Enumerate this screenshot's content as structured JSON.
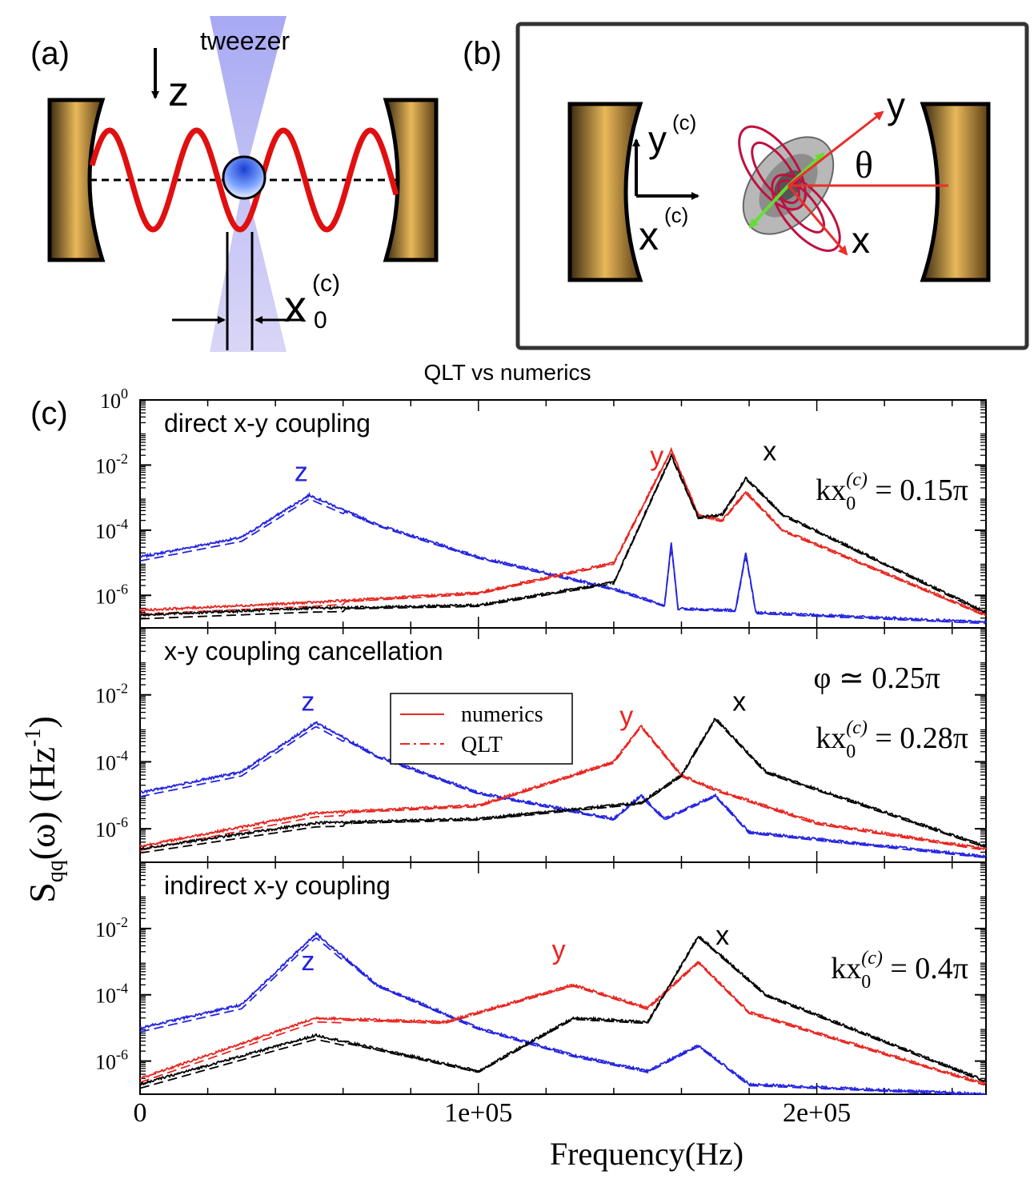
{
  "panel_a": {
    "label": "(a)",
    "tweezer_label": "tweezer",
    "z_label": "z",
    "x0_label": "x",
    "x0_sup": "(c)",
    "x0_sub": "0"
  },
  "panel_b": {
    "label": "(b)",
    "yc_label": "y",
    "yc_sup": "(c)",
    "xc_label": "x",
    "xc_sup": "(c)",
    "y_label": "y",
    "x_label": "x",
    "theta_label": "θ"
  },
  "panel_c": {
    "label": "(c)",
    "title": "QLT vs numerics",
    "ylabel": "S",
    "ylabel_sub": "qq",
    "ylabel_rest": "(ω) (Hz",
    "ylabel_sup": "-1",
    "ylabel_close": ")",
    "xlabel": "Frequency(Hz)",
    "x_ticks": [
      "0",
      "1e+05",
      "2e+05"
    ],
    "y_tick_base": "10",
    "y_tick_exps": [
      "0",
      "-2",
      "-4",
      "-6"
    ],
    "legend": {
      "solid": "numerics",
      "dashed": "QLT"
    }
  },
  "colors": {
    "x": "#000000",
    "y": "#e8251f",
    "z": "#2323e0"
  },
  "chart_data": [
    {
      "type": "line",
      "title": "direct x-y coupling",
      "annotations": [
        "kx_0^(c) = 0.15π"
      ],
      "peak_labels": {
        "z": "z",
        "y": "y",
        "x": "x"
      },
      "xlim": [
        0,
        250000
      ],
      "ylim": [
        1e-07,
        1
      ],
      "z_freq": 50000,
      "y_freq": 157000,
      "x_freq": 179000,
      "series": [
        {
          "name": "z numerics",
          "style": "solid",
          "color": "z",
          "points": [
            [
              0,
              1.5e-05
            ],
            [
              30000,
              6e-05
            ],
            [
              50000,
              0.0012
            ],
            [
              70000,
              0.00015
            ],
            [
              100000,
              1.5e-05
            ],
            [
              140000,
              1.6e-06
            ],
            [
              155000,
              5e-07
            ],
            [
              157000,
              4e-05
            ],
            [
              159000,
              4e-07
            ],
            [
              176000,
              3.5e-07
            ],
            [
              179000,
              2e-05
            ],
            [
              182000,
              3e-07
            ],
            [
              250000,
              1.5e-07
            ]
          ]
        },
        {
          "name": "y numerics",
          "style": "solid",
          "color": "y",
          "points": [
            [
              0,
              3.5e-07
            ],
            [
              50000,
              6e-07
            ],
            [
              100000,
              1.2e-06
            ],
            [
              140000,
              1e-05
            ],
            [
              157000,
              0.03
            ],
            [
              165000,
              0.0003
            ],
            [
              172000,
              0.0002
            ],
            [
              179000,
              0.0015
            ],
            [
              190000,
              0.0001
            ],
            [
              250000,
              2.5e-07
            ]
          ]
        },
        {
          "name": "x numerics",
          "style": "solid",
          "color": "x",
          "points": [
            [
              0,
              2.5e-07
            ],
            [
              50000,
              4e-07
            ],
            [
              100000,
              5e-07
            ],
            [
              140000,
              2.5e-06
            ],
            [
              157000,
              0.02
            ],
            [
              165000,
              0.00025
            ],
            [
              172000,
              0.0003
            ],
            [
              179000,
              0.004
            ],
            [
              190000,
              0.0003
            ],
            [
              250000,
              3e-07
            ]
          ]
        }
      ]
    },
    {
      "type": "line",
      "title": "x-y coupling cancellation",
      "annotations": [
        "φ ≃ 0.25π",
        "kx_0^(c) = 0.28π"
      ],
      "peak_labels": {
        "z": "z",
        "y": "y",
        "x": "x"
      },
      "xlim": [
        0,
        250000
      ],
      "ylim": [
        1e-07,
        1
      ],
      "z_freq": 52000,
      "y_freq": 148000,
      "x_freq": 170000,
      "series": [
        {
          "name": "z numerics",
          "style": "solid",
          "color": "z",
          "points": [
            [
              0,
              1.2e-05
            ],
            [
              30000,
              5e-05
            ],
            [
              52000,
              0.0015
            ],
            [
              70000,
              0.00015
            ],
            [
              100000,
              1.2e-05
            ],
            [
              140000,
              2e-06
            ],
            [
              148000,
              1e-05
            ],
            [
              155000,
              2e-06
            ],
            [
              170000,
              1e-05
            ],
            [
              180000,
              8e-07
            ],
            [
              250000,
              1.5e-07
            ]
          ]
        },
        {
          "name": "y numerics",
          "style": "solid",
          "color": "y",
          "points": [
            [
              0,
              3e-07
            ],
            [
              52000,
              3e-06
            ],
            [
              100000,
              5e-06
            ],
            [
              140000,
              0.0001
            ],
            [
              148000,
              0.0012
            ],
            [
              160000,
              4e-05
            ],
            [
              170000,
              1.5e-05
            ],
            [
              200000,
              1.5e-06
            ],
            [
              250000,
              2.5e-07
            ]
          ]
        },
        {
          "name": "x numerics",
          "style": "solid",
          "color": "x",
          "points": [
            [
              0,
              2.5e-07
            ],
            [
              52000,
              1.5e-06
            ],
            [
              100000,
              2e-06
            ],
            [
              148000,
              6e-06
            ],
            [
              160000,
              4e-05
            ],
            [
              170000,
              0.002
            ],
            [
              185000,
              5e-05
            ],
            [
              250000,
              3e-07
            ]
          ]
        }
      ]
    },
    {
      "type": "line",
      "title": "indirect x-y coupling",
      "annotations": [
        "kx_0^(c) = 0.4π"
      ],
      "peak_labels": {
        "z": "z",
        "y": "y",
        "x": "x"
      },
      "xlim": [
        0,
        250000
      ],
      "ylim": [
        1e-07,
        1
      ],
      "z_freq": 52000,
      "y_freq": 128000,
      "x_freq": 165000,
      "series": [
        {
          "name": "z numerics",
          "style": "solid",
          "color": "z",
          "points": [
            [
              0,
              1e-05
            ],
            [
              30000,
              5e-05
            ],
            [
              52000,
              0.007
            ],
            [
              70000,
              0.0002
            ],
            [
              100000,
              1e-05
            ],
            [
              128000,
              1.5e-06
            ],
            [
              150000,
              5e-07
            ],
            [
              165000,
              3e-06
            ],
            [
              180000,
              2e-07
            ],
            [
              250000,
              1e-07
            ]
          ]
        },
        {
          "name": "y numerics",
          "style": "solid",
          "color": "y",
          "points": [
            [
              0,
              3e-07
            ],
            [
              52000,
              2e-05
            ],
            [
              90000,
              1.5e-05
            ],
            [
              128000,
              0.0002
            ],
            [
              150000,
              4e-05
            ],
            [
              165000,
              0.001
            ],
            [
              180000,
              3e-05
            ],
            [
              250000,
              2e-07
            ]
          ]
        },
        {
          "name": "x numerics",
          "style": "solid",
          "color": "x",
          "points": [
            [
              0,
              2e-07
            ],
            [
              52000,
              6e-06
            ],
            [
              100000,
              5e-07
            ],
            [
              128000,
              2e-05
            ],
            [
              150000,
              1.5e-05
            ],
            [
              165000,
              0.006
            ],
            [
              185000,
              0.0001
            ],
            [
              250000,
              2.5e-07
            ]
          ]
        }
      ]
    }
  ]
}
